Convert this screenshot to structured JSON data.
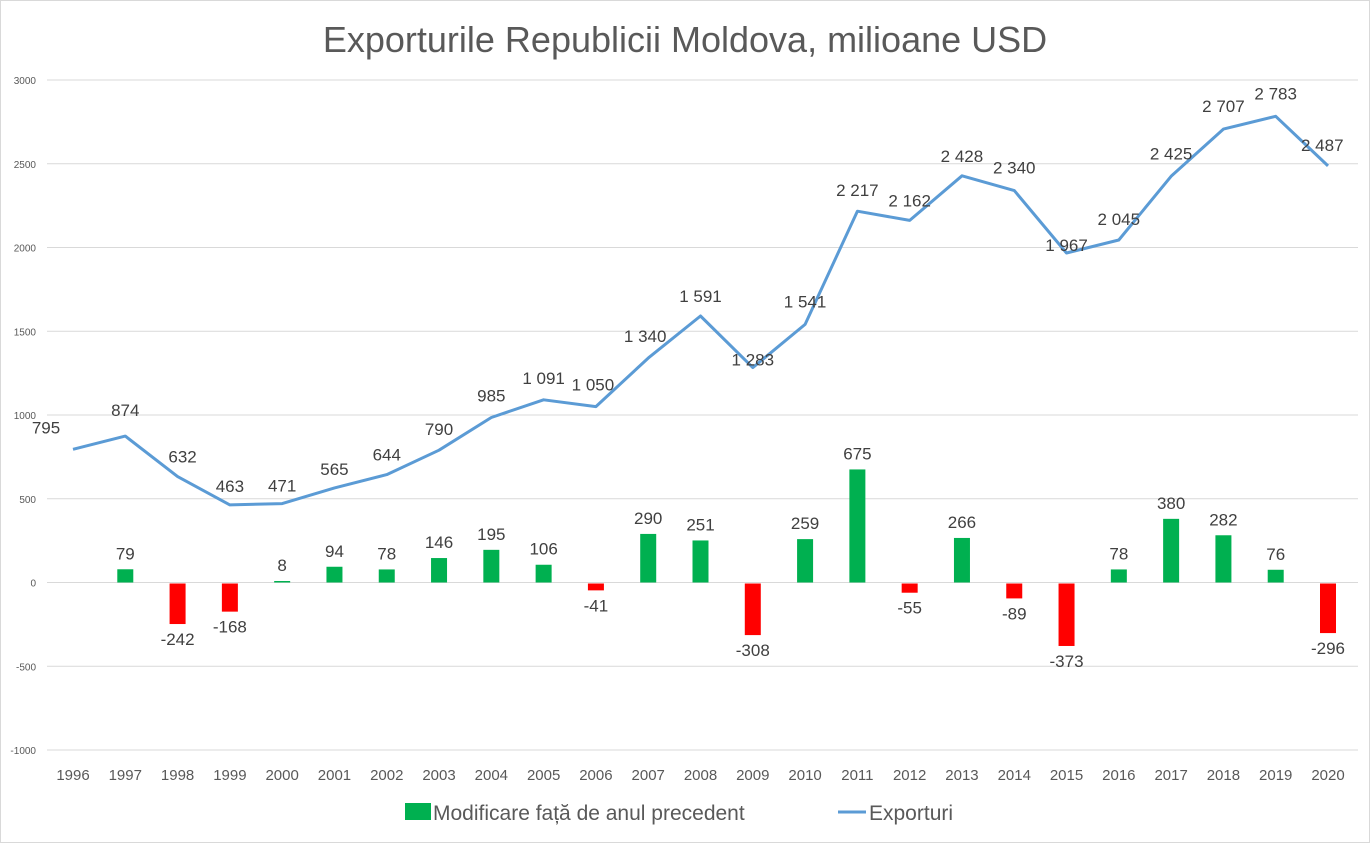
{
  "chart_data": {
    "type": "bar+line",
    "title": "Exporturile Republicii Moldova, milioane USD",
    "xlabel": "",
    "ylabel": "",
    "ylim": [
      -1000,
      3000
    ],
    "yticks": [
      3000,
      2500,
      2000,
      1500,
      1000,
      500,
      0,
      -500,
      -1000
    ],
    "ytick_labels": [
      "3000",
      "2500",
      "2000",
      "1500",
      "1000",
      "500",
      "0",
      "-500",
      "-1000"
    ],
    "grid": true,
    "legend_position": "bottom",
    "categories": [
      "1996",
      "1997",
      "1998",
      "1999",
      "2000",
      "2001",
      "2002",
      "2003",
      "2004",
      "2005",
      "2006",
      "2007",
      "2008",
      "2009",
      "2010",
      "2011",
      "2012",
      "2013",
      "2014",
      "2015",
      "2016",
      "2017",
      "2018",
      "2019",
      "2020"
    ],
    "series": [
      {
        "name": "Modificare față de anul precedent",
        "type": "bar",
        "color_positive": "#00b050",
        "color_negative": "#ff0000",
        "values": [
          null,
          79,
          -242,
          -168,
          8,
          94,
          78,
          146,
          195,
          106,
          -41,
          290,
          251,
          -308,
          259,
          675,
          -55,
          266,
          -89,
          -373,
          78,
          380,
          282,
          76,
          -296
        ],
        "labels": [
          "",
          "79",
          "-242",
          "-168",
          "8",
          "94",
          "78",
          "146",
          "195",
          "106",
          "-41",
          "290",
          "251",
          "-308",
          "259",
          "675",
          "-55",
          "266",
          "-89",
          "-373",
          "78",
          "380",
          "282",
          "76",
          "-296"
        ]
      },
      {
        "name": "Exporturi",
        "type": "line",
        "color": "#5b9bd5",
        "values": [
          795,
          874,
          632,
          463,
          471,
          565,
          644,
          790,
          985,
          1091,
          1050,
          1340,
          1591,
          1283,
          1541,
          2217,
          2162,
          2428,
          2340,
          1967,
          2045,
          2425,
          2707,
          2783,
          2487
        ],
        "labels": [
          "795",
          "874",
          "632",
          "463",
          "471",
          "565",
          "644",
          "790",
          "985",
          "1 091",
          "1 050",
          "1 340",
          "1 591",
          "1 283",
          "1 541",
          "2 217",
          "2 162",
          "2 428",
          "2 340",
          "1 967",
          "2 045",
          "2 425",
          "2 707",
          "2 783",
          "2 487"
        ]
      }
    ]
  },
  "colors": {
    "grid": "#d9d9d9",
    "text": "#595959",
    "label": "#404040"
  }
}
